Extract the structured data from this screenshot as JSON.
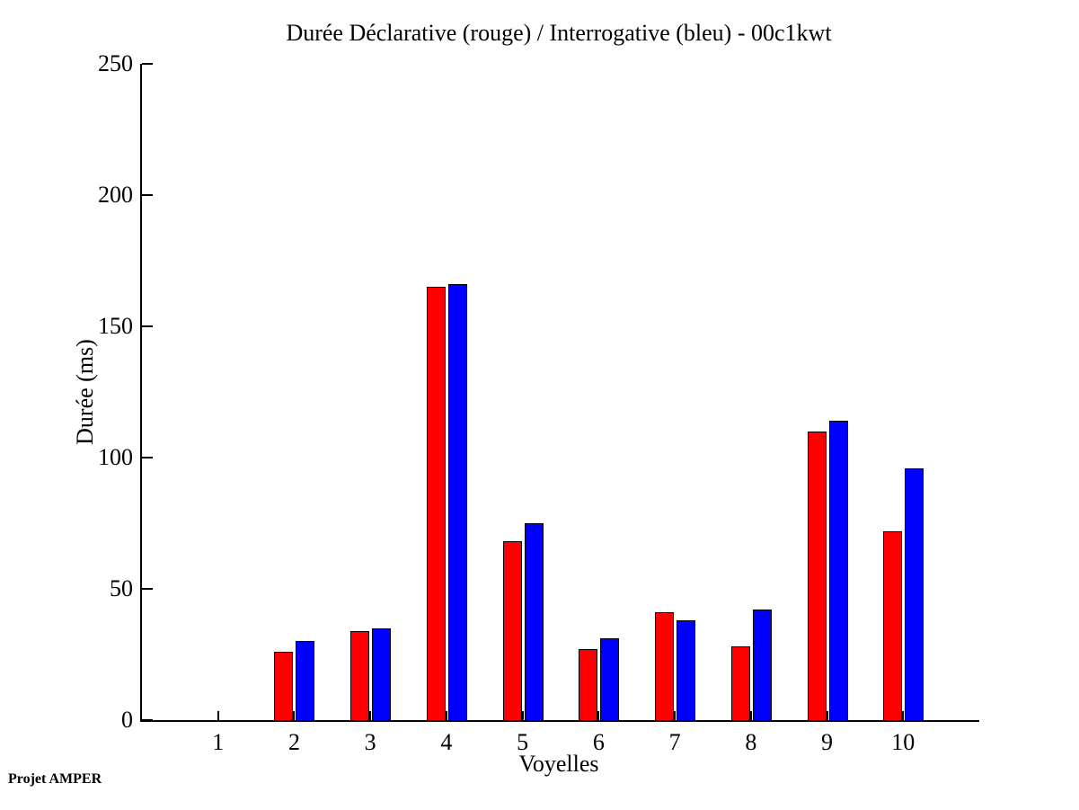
{
  "footer": {
    "watermark": "Projet AMPER"
  },
  "chart_data": {
    "type": "bar",
    "title": "Durée Déclarative (rouge) / Interrogative (bleu) - 00c1kwt",
    "xlabel": "Voyelles",
    "ylabel": "Durée (ms)",
    "categories": [
      1,
      2,
      3,
      4,
      5,
      6,
      7,
      8,
      9,
      10
    ],
    "series": [
      {
        "name": "Déclarative",
        "color": "#ff0000",
        "values": [
          0,
          26,
          34,
          165,
          68,
          27,
          41,
          28,
          110,
          72
        ]
      },
      {
        "name": "Interrogative",
        "color": "#0000ff",
        "values": [
          0,
          30,
          35,
          166,
          75,
          31,
          38,
          42,
          114,
          96
        ]
      }
    ],
    "ylim": [
      0,
      250
    ],
    "yticks": [
      0,
      50,
      100,
      150,
      200,
      250
    ],
    "grid": false,
    "legend_position": "none (series identified by colors named in title)",
    "axis_color": "#000000"
  }
}
